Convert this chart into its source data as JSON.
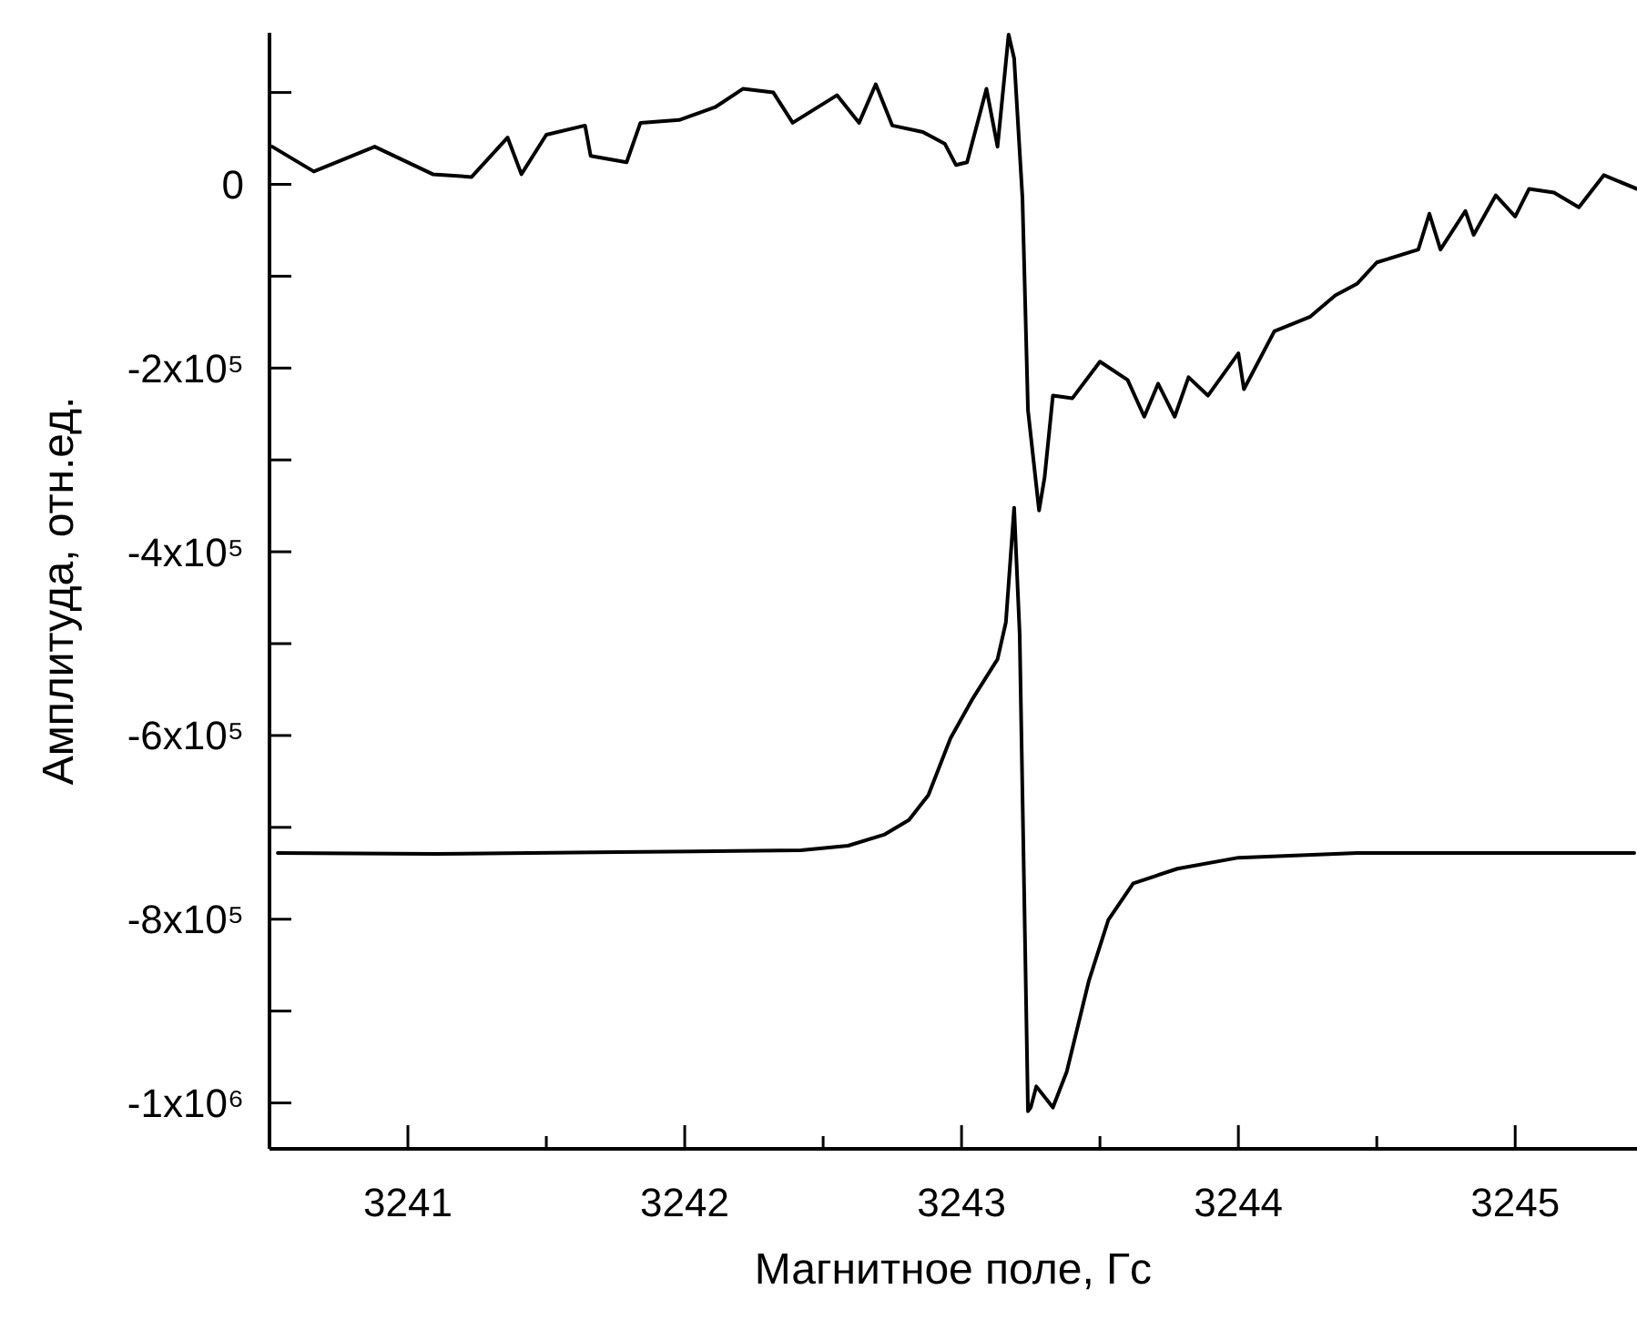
{
  "chart_data": {
    "type": "line",
    "xlabel": "Магнитное поле, Гс",
    "ylabel": "Амплитуда, отн.ед.",
    "xlim": [
      3240.5,
      3245.44
    ],
    "ylim": [
      -1050000,
      165000
    ],
    "xticks": [
      {
        "value": 3240.5,
        "label": null
      },
      3241,
      {
        "value": 3241.5,
        "label": null
      },
      3242,
      {
        "value": 3242.5,
        "label": null
      },
      3243,
      {
        "value": 3243.5,
        "label": null
      },
      3244,
      {
        "value": 3244.5,
        "label": null
      },
      3245
    ],
    "yticks": [
      {
        "value": 100000,
        "label": null
      },
      0,
      {
        "value": -100000,
        "label": null
      },
      {
        "value": -200000,
        "label": "-2x10⁵"
      },
      {
        "value": -300000,
        "label": null
      },
      {
        "value": -400000,
        "label": "-4x10⁵"
      },
      {
        "value": -500000,
        "label": null
      },
      {
        "value": -600000,
        "label": "-6x10⁵"
      },
      {
        "value": -700000,
        "label": null
      },
      {
        "value": -800000,
        "label": "-8x10⁵"
      },
      {
        "value": -900000,
        "label": null
      },
      {
        "value": -1000000,
        "label": "-1x10⁶"
      }
    ],
    "grid": false,
    "marker": "none",
    "line_style": "solid",
    "series": [
      {
        "color": "#000000",
        "x": [
          3240.51,
          3240.66,
          3240.88,
          3241.09,
          3241.23,
          3241.36,
          3241.41,
          3241.5,
          3241.64,
          3241.66,
          3241.79,
          3241.84,
          3241.98,
          3242.11,
          3242.21,
          3242.32,
          3242.39,
          3242.55,
          3242.63,
          3242.69,
          3242.75,
          3242.86,
          3242.94,
          3242.98,
          3243.02,
          3243.09,
          3243.13,
          3243.17,
          3243.19,
          3243.22,
          3243.24,
          3243.28,
          3243.3,
          3243.33,
          3243.4,
          3243.5,
          3243.6,
          3243.66,
          3243.71,
          3243.77,
          3243.82,
          3243.89,
          3244.0,
          3244.02,
          3244.13,
          3244.26,
          3244.35,
          3244.43,
          3244.5,
          3244.65,
          3244.69,
          3244.73,
          3244.82,
          3244.85,
          3244.93,
          3245.0,
          3245.05,
          3245.14,
          3245.23,
          3245.32,
          3245.44
        ],
        "values": [
          41000,
          14000,
          41000,
          11000,
          8000,
          51000,
          11000,
          54000,
          64000,
          31000,
          24000,
          67000,
          70000,
          84000,
          104000,
          100000,
          67000,
          97000,
          67000,
          109000,
          64000,
          57000,
          44000,
          21000,
          24000,
          104000,
          41000,
          163000,
          137000,
          -15000,
          -246000,
          -355000,
          -319000,
          -230000,
          -233000,
          -193000,
          -213000,
          -253000,
          -217000,
          -253000,
          -210000,
          -230000,
          -184000,
          -223000,
          -160000,
          -144000,
          -121000,
          -108000,
          -85000,
          -71000,
          -32000,
          -71000,
          -29000,
          -55000,
          -12000,
          -35000,
          -5000,
          -9000,
          -25000,
          10000,
          -5000
        ]
      },
      {
        "color": "#000000",
        "x": [
          3240.53,
          3241.1,
          3241.76,
          3242.42,
          3242.59,
          3242.72,
          3242.81,
          3242.88,
          3242.96,
          3243.04,
          3243.13,
          3243.16,
          3243.19,
          3243.21,
          3243.24,
          3243.25,
          3243.27,
          3243.33,
          3243.38,
          3243.46,
          3243.53,
          3243.62,
          3243.78,
          3244.0,
          3244.43,
          3244.87,
          3245.43
        ],
        "values": [
          -728000,
          -729000,
          -727000,
          -725000,
          -720000,
          -708000,
          -692000,
          -665000,
          -603000,
          -560000,
          -517000,
          -477000,
          -352000,
          -490000,
          -1009000,
          -1005000,
          -982000,
          -1005000,
          -966000,
          -867000,
          -801000,
          -761000,
          -745000,
          -733000,
          -728000,
          -728000,
          -728000
        ]
      }
    ]
  }
}
